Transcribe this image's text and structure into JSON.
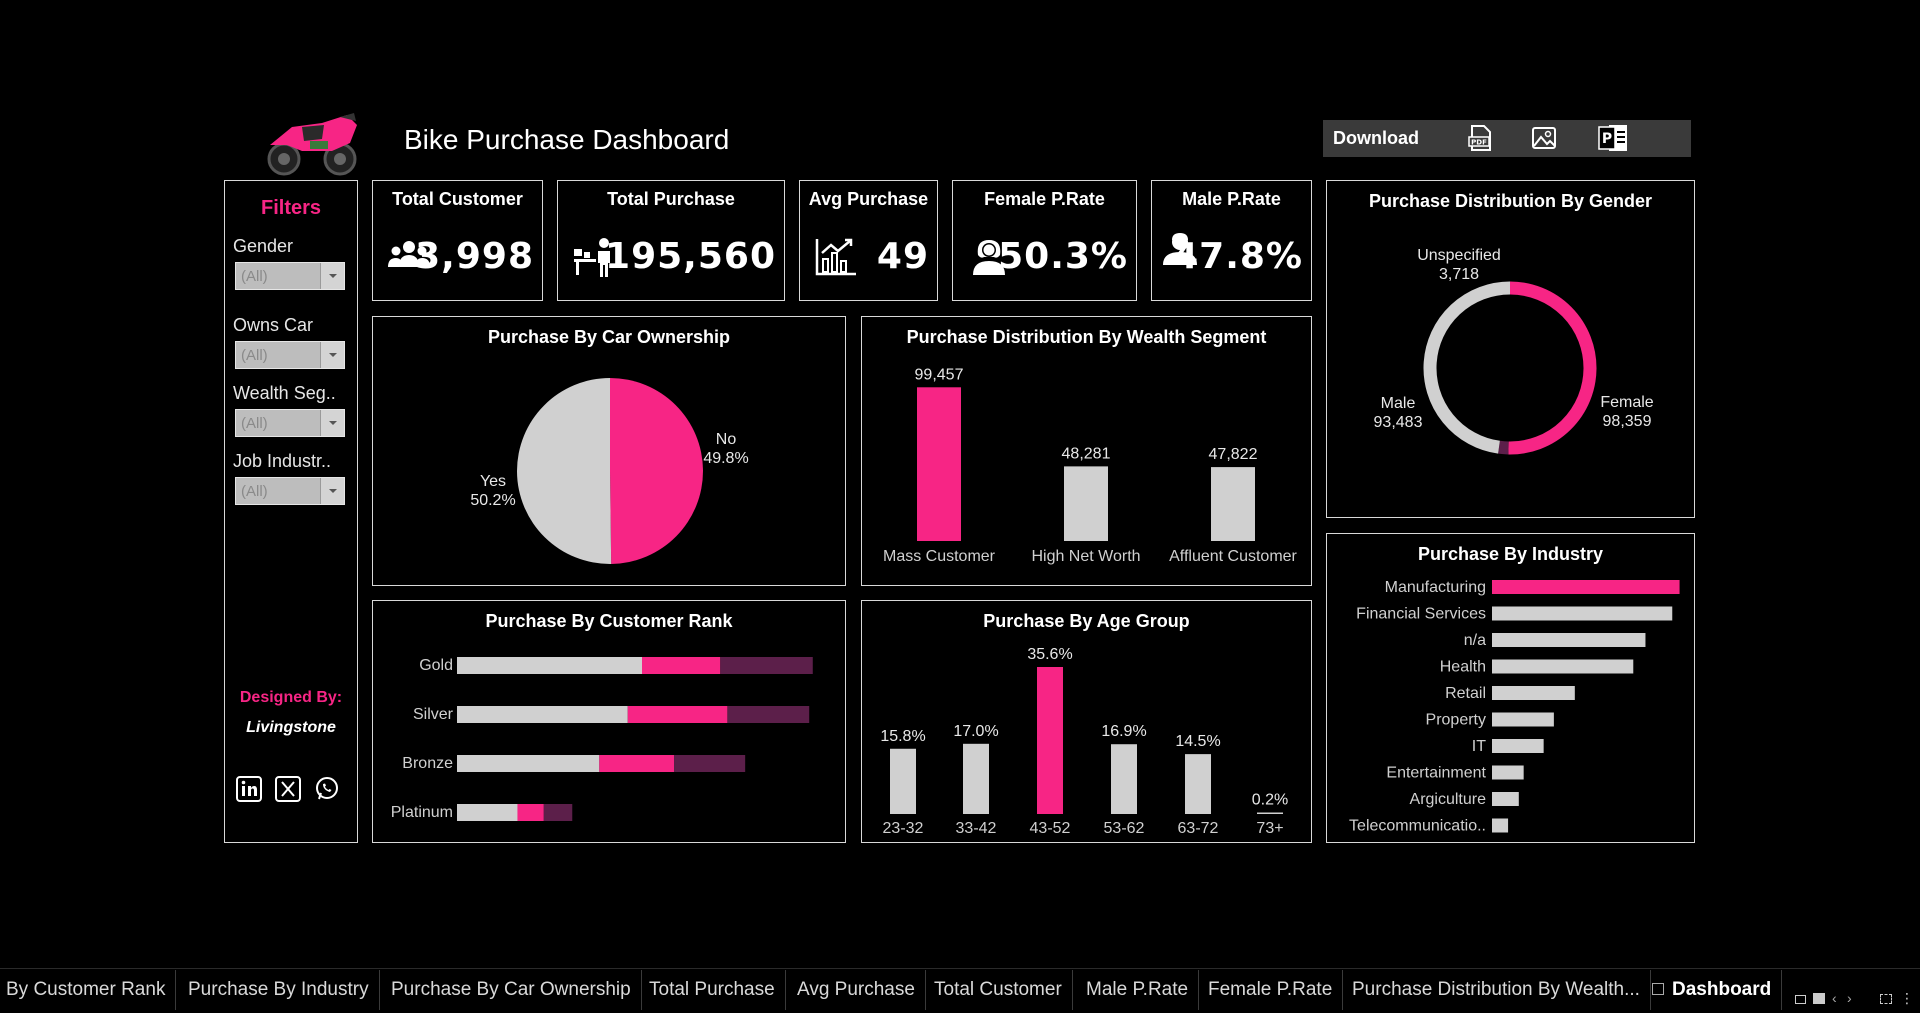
{
  "colors": {
    "accent": "#f72585",
    "grey": "#d0d0d0",
    "dark_accent": "#5c1f4a",
    "background": "#000000"
  },
  "header": {
    "title": "Bike Purchase Dashboard",
    "download_label": "Download",
    "download_options": [
      "pdf-icon",
      "image-icon",
      "powerpoint-icon"
    ]
  },
  "filters": {
    "title": "Filters",
    "items": [
      {
        "label": "Gender",
        "value": "(All)"
      },
      {
        "label": "Owns Car",
        "value": "(All)"
      },
      {
        "label": "Wealth Seg..",
        "value": "(All)"
      },
      {
        "label": "Job Industr..",
        "value": "(All)"
      }
    ],
    "designed_by_label": "Designed By:",
    "designer": "Livingstone"
  },
  "kpis": [
    {
      "title": "Total Customer",
      "value": "3,998",
      "icon": "customers-icon"
    },
    {
      "title": "Total Purchase",
      "value": "195,560",
      "icon": "purchase-icon"
    },
    {
      "title": "Avg Purchase",
      "value": "49",
      "icon": "chart-icon"
    },
    {
      "title": "Female P.Rate",
      "value": "50.3%",
      "icon": "female-icon"
    },
    {
      "title": "Male P.Rate",
      "value": "47.8%",
      "icon": "male-icon"
    }
  ],
  "chart_data": [
    {
      "id": "car_ownership",
      "type": "pie",
      "title": "Purchase By Car Ownership",
      "slices": [
        {
          "label": "No",
          "value": 49.8,
          "display": "49.8%"
        },
        {
          "label": "Yes",
          "value": 50.2,
          "display": "50.2%"
        }
      ]
    },
    {
      "id": "wealth",
      "type": "bar",
      "title": "Purchase Distribution By Wealth Segment",
      "categories": [
        "Mass Customer",
        "High Net Worth",
        "Affluent Customer"
      ],
      "values": [
        99457,
        48281,
        47822
      ],
      "labels": [
        "99,457",
        "48,281",
        "47,822"
      ],
      "ylim": [
        0,
        110000
      ]
    },
    {
      "id": "gender",
      "type": "pie",
      "title": "Purchase Distribution By Gender",
      "slices": [
        {
          "label": "Female",
          "value": 98359,
          "display": "98,359"
        },
        {
          "label": "Unspecified",
          "value": 3718,
          "display": "3,718"
        },
        {
          "label": "Male",
          "value": 93483,
          "display": "93,483"
        }
      ]
    },
    {
      "id": "rank",
      "type": "bar",
      "title": "Purchase By Customer Rank",
      "categories": [
        "Gold",
        "Silver",
        "Bronze",
        "Platinum"
      ],
      "series": [
        {
          "name": "segment-1",
          "values": [
            26,
            24,
            20,
            8.5
          ]
        },
        {
          "name": "segment-2",
          "values": [
            11,
            14,
            10.5,
            3.7
          ]
        },
        {
          "name": "segment-3",
          "values": [
            13,
            11.5,
            10,
            4
          ]
        }
      ],
      "xlim": [
        0,
        52
      ]
    },
    {
      "id": "age",
      "type": "bar",
      "title": "Purchase By Age Group",
      "categories": [
        "23-32",
        "33-42",
        "43-52",
        "53-62",
        "63-72",
        "73+"
      ],
      "values": [
        15.8,
        17.0,
        35.6,
        16.9,
        14.5,
        0.2
      ],
      "labels": [
        "15.8%",
        "17.0%",
        "35.6%",
        "16.9%",
        "14.5%",
        "0.2%"
      ],
      "ylim": [
        0,
        40
      ]
    },
    {
      "id": "industry",
      "type": "bar",
      "title": "Purchase By Industry",
      "categories": [
        "Manufacturing",
        "Financial Services",
        "n/a",
        "Health",
        "Retail",
        "Property",
        "IT",
        "Entertainment",
        "Argiculture",
        "Telecommunicatio.."
      ],
      "values": [
        38500,
        37000,
        31500,
        29000,
        17000,
        12700,
        10600,
        6500,
        5500,
        3300
      ],
      "xlim": [
        0,
        39000
      ]
    }
  ],
  "tabs": [
    "By Customer Rank",
    "Purchase By Industry",
    "Purchase By Car Ownership",
    "Total Purchase",
    "Avg Purchase",
    "Total Customer",
    "Male P.Rate",
    "Female P.Rate",
    "Purchase Distribution By Wealth...",
    "Dashboard"
  ]
}
